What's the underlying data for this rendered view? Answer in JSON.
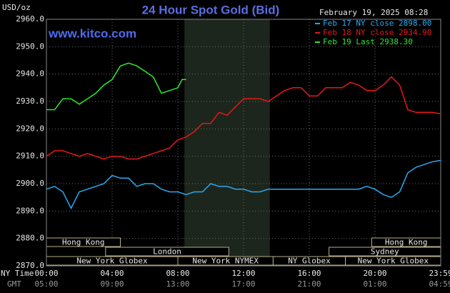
{
  "chart_data": {
    "type": "line",
    "title": "24 Hour Spot Gold (Bid)",
    "unit_label": "USD/oz",
    "timestamp": "February 19, 2025 08:28",
    "site": "www.kitco.com",
    "x_row_labels": [
      "NY Time",
      "GMT"
    ],
    "xlim": [
      0,
      24
    ],
    "xticks": [
      {
        "value": 0,
        "label": "00:00"
      },
      {
        "value": 4,
        "label": "04:00"
      },
      {
        "value": 8,
        "label": "08:00"
      },
      {
        "value": 12,
        "label": "12:00"
      },
      {
        "value": 16,
        "label": "16:00"
      },
      {
        "value": 20,
        "label": "20:00"
      },
      {
        "value": 24,
        "label": "23:59"
      }
    ],
    "xticks_gmt": [
      "05:00",
      "09:00",
      "13:00",
      "17:00",
      "21:00",
      "01:00",
      "04:59"
    ],
    "ylim": [
      2870,
      2960
    ],
    "yticks": [
      {
        "value": 2870,
        "label": "2870.0"
      },
      {
        "value": 2880,
        "label": "2880.0"
      },
      {
        "value": 2890,
        "label": "2890.0"
      },
      {
        "value": 2900,
        "label": "2900.0"
      },
      {
        "value": 2910,
        "label": "2910.0"
      },
      {
        "value": 2920,
        "label": "2920.0"
      },
      {
        "value": 2930,
        "label": "2930.0"
      },
      {
        "value": 2940,
        "label": "2940.0"
      },
      {
        "value": 2950,
        "label": "2950.0"
      },
      {
        "value": 2960,
        "label": "2960.0"
      }
    ],
    "grid": true,
    "sessions": [
      "Hong Kong",
      "London",
      "New York Globex",
      "New York NYMEX",
      "NY Globex",
      "Hong Kong",
      "Sydney",
      "New York Globex"
    ],
    "series": [
      {
        "name": "Feb 17 NY close 2898.00",
        "color": "#29aaf0",
        "x": [
          0,
          0.5,
          1,
          1.5,
          2,
          2.5,
          3,
          3.5,
          4,
          4.5,
          5,
          5.5,
          6,
          6.5,
          7,
          7.5,
          8,
          8.5,
          9,
          9.5,
          10,
          10.5,
          11,
          11.5,
          12,
          12.5,
          13,
          13.5,
          14,
          14.5,
          15,
          15.5,
          16,
          16.5,
          17,
          17.5,
          18,
          18.5,
          19,
          19.5,
          20,
          20.5,
          21,
          21.5,
          22,
          22.5,
          23,
          23.5,
          24
        ],
        "values": [
          2898,
          2899,
          2897,
          2891,
          2897,
          2898,
          2899,
          2900,
          2903,
          2902,
          2902,
          2899,
          2900,
          2900,
          2898,
          2897,
          2897,
          2896,
          2897,
          2897,
          2900,
          2899,
          2899,
          2898,
          2898,
          2897,
          2897,
          2898,
          2898,
          2898,
          2898,
          2898,
          2898,
          2898,
          2898,
          2898,
          2898,
          2898,
          2898,
          2899,
          2898,
          2896,
          2895,
          2897,
          2904,
          2906,
          2907,
          2908,
          2908.5
        ]
      },
      {
        "name": "Feb 18 NY close 2934.90",
        "color": "#e81818",
        "x": [
          0,
          0.5,
          1,
          1.5,
          2,
          2.5,
          3,
          3.5,
          4,
          4.5,
          5,
          5.5,
          6,
          6.5,
          7,
          7.5,
          8,
          8.5,
          9,
          9.5,
          10,
          10.5,
          11,
          11.5,
          12,
          12.5,
          13,
          13.5,
          14,
          14.5,
          15,
          15.5,
          16,
          16.5,
          17,
          17.5,
          18,
          18.5,
          19,
          19.5,
          20,
          20.5,
          21,
          21.5,
          22,
          22.5,
          23,
          23.5,
          24
        ],
        "values": [
          2910,
          2912,
          2912,
          2911,
          2910,
          2911,
          2910,
          2909,
          2910,
          2910,
          2909,
          2909,
          2910,
          2911,
          2912,
          2913,
          2916,
          2917,
          2919,
          2922,
          2922,
          2926,
          2925,
          2928,
          2931,
          2931,
          2931,
          2930,
          2932,
          2934,
          2935,
          2935,
          2932,
          2932,
          2935,
          2935,
          2935,
          2937,
          2936,
          2934,
          2934,
          2936,
          2939,
          2936,
          2927,
          2926,
          2926,
          2926,
          2925.5
        ]
      },
      {
        "name": "Feb 19 Last 2938.30",
        "color": "#2ee82e",
        "x": [
          0,
          0.5,
          1,
          1.5,
          2,
          2.5,
          3,
          3.5,
          4,
          4.5,
          5,
          5.5,
          6,
          6.5,
          7,
          7.5,
          8,
          8.25,
          8.5
        ],
        "values": [
          2927,
          2927,
          2931,
          2931,
          2929,
          2931,
          2933,
          2936,
          2938,
          2943,
          2944,
          2943,
          2941,
          2939,
          2933,
          2934,
          2935,
          2938,
          2938
        ]
      }
    ]
  }
}
